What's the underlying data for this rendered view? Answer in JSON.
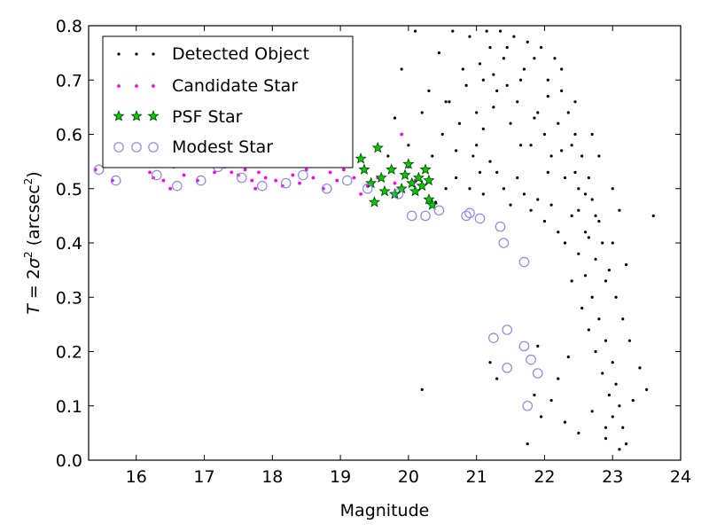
{
  "chart_data": {
    "type": "scatter",
    "title": "",
    "xlabel": "Magnitude",
    "ylabel_parts": {
      "lhs": "T",
      "eq": " = 2",
      "sym": "σ",
      "sup": "2",
      "unit_open": " (arcsec",
      "unit_sup": "2",
      "unit_close": ")"
    },
    "xlim": [
      15.3,
      24.0
    ],
    "ylim": [
      0.0,
      0.8
    ],
    "xticks": [
      16,
      17,
      18,
      19,
      20,
      21,
      22,
      23,
      24
    ],
    "yticks": [
      0.0,
      0.1,
      0.2,
      0.3,
      0.4,
      0.5,
      0.6,
      0.7,
      0.8
    ],
    "xtick_labels": [
      "16",
      "17",
      "18",
      "19",
      "20",
      "21",
      "22",
      "23",
      "24"
    ],
    "ytick_labels": [
      "0.0",
      "0.1",
      "0.2",
      "0.3",
      "0.4",
      "0.5",
      "0.6",
      "0.7",
      "0.8"
    ],
    "grid": false,
    "legend_position": "top-left",
    "colors": {
      "detected": "#000000",
      "candidate": "#ff00ff",
      "psf": "#00cc00",
      "modest": "#8888ee"
    },
    "series": [
      {
        "name": "Detected Object",
        "marker": "dot",
        "points": [
          [
            20.4,
            0.475
          ],
          [
            20.55,
            0.5
          ],
          [
            20.7,
            0.52
          ],
          [
            20.9,
            0.5
          ],
          [
            20.95,
            0.56
          ],
          [
            21.05,
            0.53
          ],
          [
            21.1,
            0.49
          ],
          [
            21.2,
            0.55
          ],
          [
            21.3,
            0.53
          ],
          [
            21.4,
            0.5
          ],
          [
            21.5,
            0.47
          ],
          [
            21.6,
            0.52
          ],
          [
            21.7,
            0.49
          ],
          [
            21.8,
            0.46
          ],
          [
            21.9,
            0.48
          ],
          [
            22.0,
            0.44
          ],
          [
            22.1,
            0.47
          ],
          [
            22.2,
            0.42
          ],
          [
            22.3,
            0.4
          ],
          [
            22.4,
            0.45
          ],
          [
            20.5,
            0.6
          ],
          [
            20.6,
            0.66
          ],
          [
            20.8,
            0.72
          ],
          [
            20.9,
            0.78
          ],
          [
            21.0,
            0.64
          ],
          [
            21.1,
            0.7
          ],
          [
            21.2,
            0.76
          ],
          [
            21.3,
            0.68
          ],
          [
            21.4,
            0.74
          ],
          [
            21.5,
            0.62
          ],
          [
            21.6,
            0.66
          ],
          [
            21.7,
            0.72
          ],
          [
            21.8,
            0.58
          ],
          [
            21.9,
            0.64
          ],
          [
            22.0,
            0.6
          ],
          [
            22.1,
            0.56
          ],
          [
            22.2,
            0.62
          ],
          [
            22.3,
            0.52
          ],
          [
            22.4,
            0.58
          ],
          [
            22.5,
            0.5
          ],
          [
            19.9,
            0.72
          ],
          [
            20.1,
            0.79
          ],
          [
            20.3,
            0.68
          ],
          [
            20.45,
            0.75
          ],
          [
            20.65,
            0.79
          ],
          [
            20.75,
            0.62
          ],
          [
            21.15,
            0.79
          ],
          [
            21.35,
            0.79
          ],
          [
            21.55,
            0.78
          ],
          [
            21.75,
            0.77
          ],
          [
            21.95,
            0.76
          ],
          [
            22.05,
            0.7
          ],
          [
            22.15,
            0.74
          ],
          [
            22.25,
            0.68
          ],
          [
            22.35,
            0.64
          ],
          [
            22.45,
            0.6
          ],
          [
            22.55,
            0.56
          ],
          [
            22.65,
            0.52
          ],
          [
            22.7,
            0.48
          ],
          [
            22.8,
            0.44
          ],
          [
            22.5,
            0.38
          ],
          [
            22.6,
            0.34
          ],
          [
            22.7,
            0.3
          ],
          [
            22.8,
            0.26
          ],
          [
            22.9,
            0.22
          ],
          [
            23.0,
            0.18
          ],
          [
            23.05,
            0.14
          ],
          [
            23.1,
            0.1
          ],
          [
            23.15,
            0.06
          ],
          [
            23.2,
            0.03
          ],
          [
            22.4,
            0.33
          ],
          [
            22.55,
            0.28
          ],
          [
            22.65,
            0.24
          ],
          [
            22.75,
            0.2
          ],
          [
            22.85,
            0.16
          ],
          [
            22.95,
            0.12
          ],
          [
            23.0,
            0.08
          ],
          [
            22.9,
            0.04
          ],
          [
            22.6,
            0.42
          ],
          [
            22.5,
            0.46
          ],
          [
            21.2,
            0.18
          ],
          [
            21.3,
            0.15
          ],
          [
            21.85,
            0.12
          ],
          [
            21.95,
            0.08
          ],
          [
            22.1,
            0.11
          ],
          [
            22.3,
            0.07
          ],
          [
            22.5,
            0.05
          ],
          [
            22.7,
            0.09
          ],
          [
            22.9,
            0.06
          ],
          [
            23.1,
            0.02
          ],
          [
            23.3,
            0.11
          ],
          [
            23.5,
            0.13
          ],
          [
            23.6,
            0.45
          ],
          [
            23.4,
            0.17
          ],
          [
            23.25,
            0.22
          ],
          [
            21.75,
            0.03
          ],
          [
            22.2,
            0.15
          ],
          [
            20.2,
            0.13
          ],
          [
            21.9,
            0.21
          ],
          [
            22.35,
            0.19
          ],
          [
            21.0,
            0.58
          ],
          [
            21.1,
            0.61
          ],
          [
            21.25,
            0.65
          ],
          [
            21.45,
            0.69
          ],
          [
            21.65,
            0.58
          ],
          [
            21.85,
            0.63
          ],
          [
            22.05,
            0.53
          ],
          [
            22.25,
            0.57
          ],
          [
            22.45,
            0.53
          ],
          [
            22.6,
            0.49
          ],
          [
            22.75,
            0.45
          ],
          [
            22.85,
            0.4
          ],
          [
            22.95,
            0.35
          ],
          [
            23.05,
            0.3
          ],
          [
            23.15,
            0.26
          ],
          [
            23.2,
            0.36
          ],
          [
            23.0,
            0.4
          ],
          [
            22.9,
            0.33
          ],
          [
            22.75,
            0.37
          ],
          [
            22.65,
            0.41
          ],
          [
            19.7,
            0.56
          ],
          [
            19.8,
            0.63
          ],
          [
            20.0,
            0.58
          ],
          [
            20.2,
            0.64
          ],
          [
            20.35,
            0.56
          ],
          [
            20.55,
            0.66
          ],
          [
            20.7,
            0.57
          ],
          [
            20.85,
            0.69
          ],
          [
            21.05,
            0.73
          ],
          [
            21.25,
            0.71
          ],
          [
            21.45,
            0.76
          ],
          [
            21.65,
            0.7
          ],
          [
            21.85,
            0.74
          ],
          [
            22.05,
            0.67
          ],
          [
            22.25,
            0.72
          ],
          [
            22.45,
            0.66
          ],
          [
            22.7,
            0.6
          ],
          [
            22.8,
            0.56
          ],
          [
            23.0,
            0.5
          ],
          [
            23.1,
            0.46
          ]
        ]
      },
      {
        "name": "Candidate Star",
        "marker": "small-circle",
        "points": [
          [
            15.4,
            0.535
          ],
          [
            15.65,
            0.515
          ],
          [
            15.9,
            0.545
          ],
          [
            16.2,
            0.53
          ],
          [
            16.25,
            0.52
          ],
          [
            16.5,
            0.5
          ],
          [
            16.55,
            0.54
          ],
          [
            16.7,
            0.525
          ],
          [
            16.9,
            0.515
          ],
          [
            17.05,
            0.545
          ],
          [
            17.15,
            0.53
          ],
          [
            17.3,
            0.54
          ],
          [
            17.5,
            0.525
          ],
          [
            17.6,
            0.535
          ],
          [
            17.7,
            0.515
          ],
          [
            17.75,
            0.5
          ],
          [
            17.8,
            0.53
          ],
          [
            17.9,
            0.52
          ],
          [
            18.05,
            0.515
          ],
          [
            18.15,
            0.505
          ],
          [
            18.3,
            0.525
          ],
          [
            18.4,
            0.51
          ],
          [
            18.5,
            0.535
          ],
          [
            18.6,
            0.52
          ],
          [
            18.75,
            0.5
          ],
          [
            18.85,
            0.53
          ],
          [
            18.95,
            0.515
          ],
          [
            19.05,
            0.535
          ],
          [
            19.2,
            0.52
          ],
          [
            19.3,
            0.49
          ],
          [
            19.4,
            0.505
          ],
          [
            19.55,
            0.52
          ],
          [
            19.65,
            0.495
          ],
          [
            19.8,
            0.51
          ],
          [
            19.9,
            0.6
          ],
          [
            20.0,
            0.54
          ],
          [
            20.1,
            0.515
          ],
          [
            16.4,
            0.515
          ],
          [
            17.4,
            0.53
          ],
          [
            18.7,
            0.545
          ]
        ]
      },
      {
        "name": "PSF Star",
        "marker": "star",
        "points": [
          [
            19.3,
            0.555
          ],
          [
            19.35,
            0.535
          ],
          [
            19.45,
            0.51
          ],
          [
            19.5,
            0.475
          ],
          [
            19.55,
            0.575
          ],
          [
            19.6,
            0.52
          ],
          [
            19.65,
            0.495
          ],
          [
            19.75,
            0.535
          ],
          [
            19.8,
            0.49
          ],
          [
            19.95,
            0.525
          ],
          [
            20.0,
            0.545
          ],
          [
            20.05,
            0.51
          ],
          [
            20.1,
            0.495
          ],
          [
            20.15,
            0.52
          ],
          [
            20.2,
            0.505
          ],
          [
            20.25,
            0.535
          ],
          [
            20.3,
            0.515
          ],
          [
            20.3,
            0.48
          ],
          [
            20.35,
            0.47
          ],
          [
            19.9,
            0.5
          ]
        ]
      },
      {
        "name": "Modest Star",
        "marker": "open-circle",
        "points": [
          [
            15.45,
            0.535
          ],
          [
            15.7,
            0.515
          ],
          [
            16.3,
            0.525
          ],
          [
            16.6,
            0.505
          ],
          [
            16.95,
            0.515
          ],
          [
            17.2,
            0.54
          ],
          [
            17.55,
            0.52
          ],
          [
            17.85,
            0.505
          ],
          [
            18.2,
            0.51
          ],
          [
            18.45,
            0.525
          ],
          [
            18.8,
            0.5
          ],
          [
            19.1,
            0.515
          ],
          [
            19.4,
            0.5
          ],
          [
            19.85,
            0.49
          ],
          [
            20.05,
            0.45
          ],
          [
            20.25,
            0.45
          ],
          [
            20.45,
            0.46
          ],
          [
            20.9,
            0.455
          ],
          [
            21.05,
            0.445
          ],
          [
            21.35,
            0.43
          ],
          [
            21.4,
            0.4
          ],
          [
            21.7,
            0.365
          ],
          [
            21.25,
            0.225
          ],
          [
            21.45,
            0.24
          ],
          [
            21.7,
            0.21
          ],
          [
            21.45,
            0.17
          ],
          [
            21.8,
            0.185
          ],
          [
            21.9,
            0.16
          ],
          [
            21.75,
            0.1
          ],
          [
            20.85,
            0.45
          ]
        ]
      }
    ]
  }
}
